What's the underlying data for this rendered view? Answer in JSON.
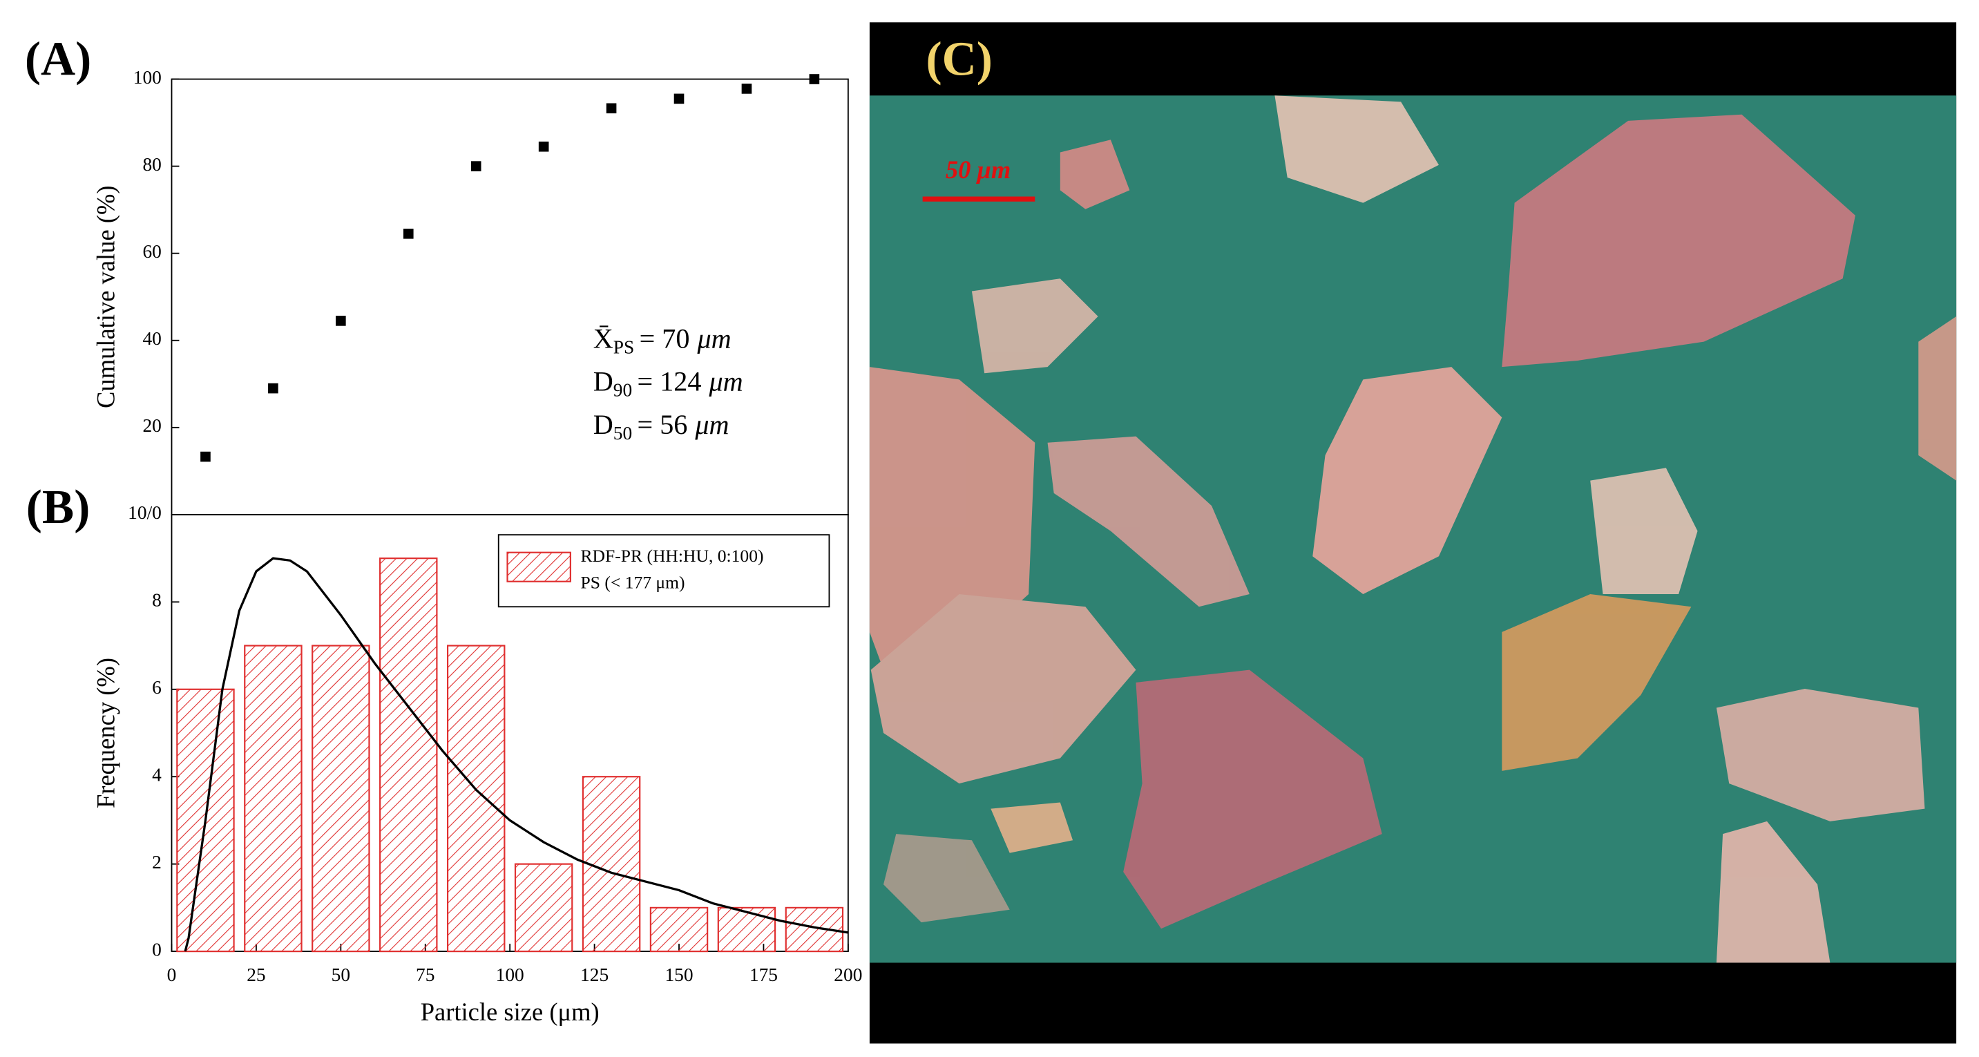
{
  "chart_data": [
    {
      "type": "scatter",
      "panel_label": "(A)",
      "y_label": "Cumulative value (%)",
      "x": [
        10,
        30,
        50,
        70,
        90,
        110,
        130,
        150,
        170,
        190
      ],
      "values": [
        13.3,
        29,
        44.5,
        64.5,
        80,
        84.5,
        93.3,
        95.5,
        97.8,
        100
      ],
      "color": "#000000",
      "xlim": [
        0,
        200
      ],
      "ylim": [
        0,
        100
      ],
      "yticks": [
        20,
        40,
        60,
        80,
        100
      ],
      "annotations": [
        {
          "symbol": "X̄",
          "subscript": "PS",
          "value": "= 70",
          "unit": "μm"
        },
        {
          "symbol": "D",
          "subscript": "90",
          "value": "= 124",
          "unit": "μm"
        },
        {
          "symbol": "D",
          "subscript": "50",
          "value": "= 56",
          "unit": "μm"
        }
      ]
    },
    {
      "type": "histogram",
      "panel_label": "(B)",
      "y_label": "Frequency (%)",
      "x_label": "Particle size (μm)",
      "bins": [
        0,
        20,
        40,
        60,
        80,
        100,
        120,
        140,
        160,
        180,
        200
      ],
      "values": [
        6,
        7,
        7,
        9,
        7,
        2,
        4,
        1,
        1,
        1
      ],
      "color": "#e03030",
      "legend": [
        "RDF-PR (HH:HU, 0:100)",
        "PS (< 177 μm)"
      ],
      "fit": {
        "color": "#000000",
        "x": [
          4,
          5,
          10,
          15,
          20,
          25,
          30,
          35,
          40,
          50,
          60,
          70,
          80,
          90,
          100,
          110,
          120,
          130,
          140,
          150,
          160,
          170,
          180,
          190,
          200
        ],
        "y": [
          0,
          0.3,
          3,
          6,
          7.8,
          8.7,
          9,
          8.95,
          8.7,
          7.7,
          6.6,
          5.6,
          4.6,
          3.7,
          3.0,
          2.5,
          2.1,
          1.8,
          1.6,
          1.4,
          1.1,
          0.9,
          0.7,
          0.55,
          0.43
        ]
      },
      "xlim": [
        0,
        200
      ],
      "xticks": [
        0,
        25,
        50,
        75,
        100,
        125,
        150,
        175,
        200
      ],
      "ylim": [
        0,
        10
      ],
      "yticks": [
        0,
        2,
        4,
        6,
        8,
        {
          "value": 10,
          "label": "10/0"
        }
      ]
    }
  ],
  "image": {
    "panel_label": "(C)",
    "scale_bar": "50 μm"
  }
}
